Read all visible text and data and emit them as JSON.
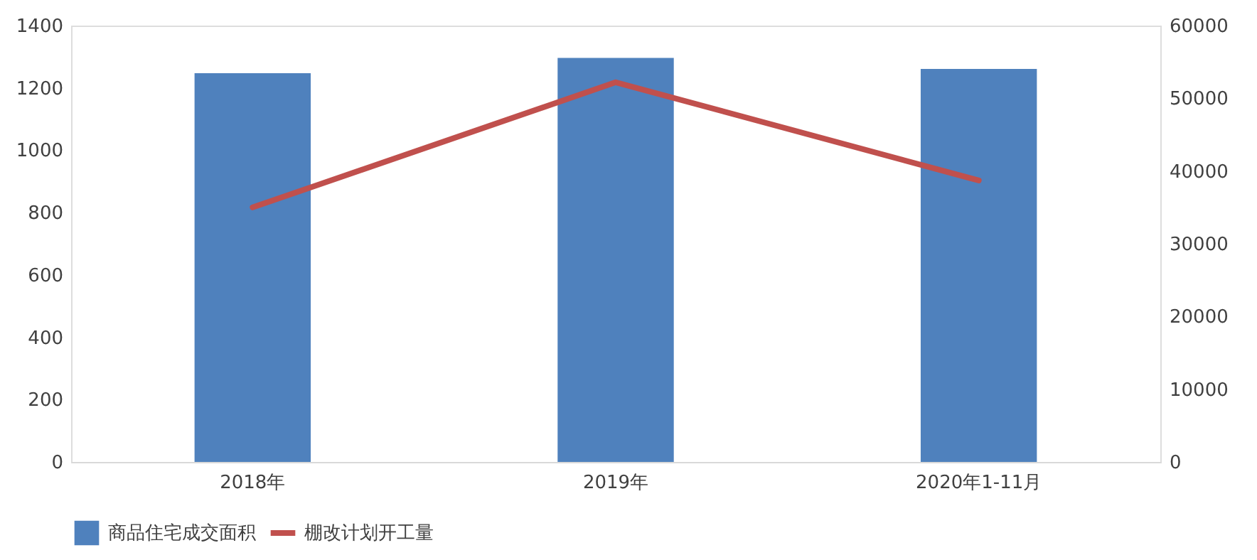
{
  "chart_data": {
    "type": "bar",
    "categories": [
      "2018年",
      "2019年",
      "2020年1-11月"
    ],
    "series": [
      {
        "name": "商品住宅成交面积",
        "color": "#4f81bd",
        "values": [
          1247,
          1296,
          1261
        ]
      },
      {
        "name": "棚改计划开工量",
        "type": "line",
        "axis": "y2",
        "color": "#c0504d",
        "values": [
          35000,
          52200,
          38700
        ]
      }
    ],
    "ylim": [
      0,
      1400
    ],
    "yticks": [
      0,
      200,
      400,
      600,
      800,
      1000,
      1200,
      1400
    ],
    "y2lim": [
      0,
      60000
    ],
    "y2ticks": [
      0,
      10000,
      20000,
      30000,
      40000,
      50000,
      60000
    ],
    "grid": false,
    "legend": "bottom",
    "marker": "none",
    "line_style": "solid"
  }
}
